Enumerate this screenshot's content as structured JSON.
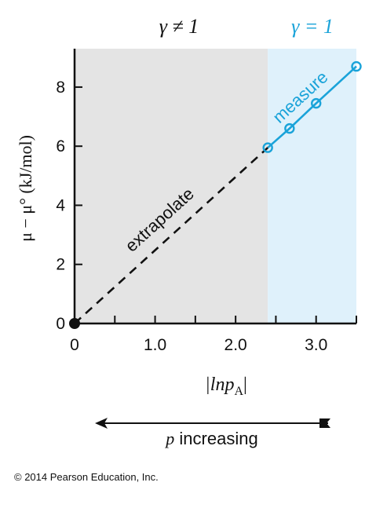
{
  "chart_data": {
    "type": "line",
    "regions": [
      {
        "label": "γ ≠ 1",
        "x_range": [
          0,
          2.4
        ],
        "color": "#e4e4e4"
      },
      {
        "label": "γ = 1",
        "x_range": [
          2.4,
          3.5
        ],
        "color": "#dff1fb"
      }
    ],
    "series": [
      {
        "name": "extrapolate",
        "style": "dashed",
        "color": "#111111",
        "points": [
          [
            0,
            0
          ],
          [
            2.4,
            5.95
          ]
        ]
      },
      {
        "name": "measure",
        "style": "solid",
        "color": "#1aa3d9",
        "markers": "open-circle",
        "points": [
          [
            2.4,
            5.95
          ],
          [
            2.67,
            6.6
          ],
          [
            3.0,
            7.45
          ],
          [
            3.5,
            8.7
          ]
        ]
      }
    ],
    "origin_point": [
      0,
      0
    ],
    "xlabel": "|lnp",
    "xlabel_sub": "A",
    "xlabel_close": "|",
    "ylabel": "μ − μ° (kJ/mol)",
    "xlim": [
      0,
      3.5
    ],
    "ylim": [
      0,
      9.3
    ],
    "x_ticks": [
      0,
      0.5,
      1.0,
      1.5,
      2.0,
      2.5,
      3.0,
      3.5
    ],
    "x_tick_labels": [
      {
        "value": 0,
        "text": "0"
      },
      {
        "value": 1.0,
        "text": "1.0"
      },
      {
        "value": 2.0,
        "text": "2.0"
      },
      {
        "value": 3.0,
        "text": "3.0"
      }
    ],
    "y_ticks": [
      0,
      2,
      4,
      6,
      8
    ],
    "y_tick_labels": [
      "0",
      "2",
      "4",
      "6",
      "8"
    ],
    "arrow_label": "p increasing",
    "arrow_label_italic_part": "p",
    "arrow_label_rest": " increasing",
    "grid": false,
    "legend": "none"
  },
  "header": {
    "left_region_label": "γ ≠ 1",
    "right_region_label": "γ = 1"
  },
  "annotations": {
    "extrapolate": "extrapolate",
    "measure": "measure"
  },
  "footer": {
    "copyright": "© 2014 Pearson Education, Inc."
  },
  "colors": {
    "accent": "#1aa3d9",
    "left_bg": "#e4e4e4",
    "right_bg": "#dff1fb",
    "ink": "#111111"
  }
}
